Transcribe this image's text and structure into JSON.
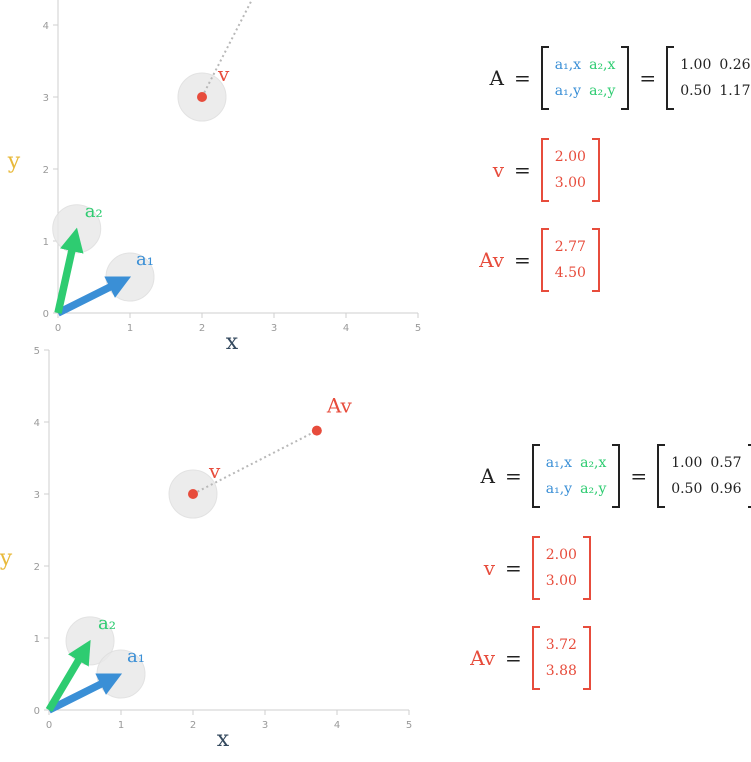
{
  "axis": {
    "xlabel": "x",
    "ylabel": "y",
    "ticks": [
      "0",
      "1",
      "2",
      "3",
      "4",
      "5"
    ],
    "xlim": [
      0,
      5
    ],
    "ylim": [
      0,
      5
    ]
  },
  "colors": {
    "a1": "#3a8fd6",
    "a2": "#2ecc71",
    "point": "#e74c3c",
    "ylabel": "#e8b93a",
    "xlabel": "#34495e"
  },
  "labels": {
    "a1": "a₁",
    "a2": "a₂",
    "v": "v",
    "Av": "Av",
    "A": "A",
    "eq": "="
  },
  "symbolic": {
    "a1x": "a₁,x",
    "a2x": "a₂,x",
    "a1y": "a₁,y",
    "a2y": "a₂,y"
  },
  "chart_data": [
    {
      "type": "scatter",
      "xlabel": "x",
      "ylabel": "y",
      "xlim": [
        0,
        5
      ],
      "ylim": [
        0,
        5
      ],
      "matrix": [
        [
          "1.00",
          "0.26"
        ],
        [
          "0.50",
          "1.17"
        ]
      ],
      "v": [
        "2.00",
        "3.00"
      ],
      "Av": [
        "2.77",
        "4.50"
      ],
      "a1": [
        1.0,
        0.5
      ],
      "a2": [
        0.26,
        1.17
      ],
      "v_point": [
        2.0,
        3.0
      ],
      "Av_point": [
        2.77,
        4.5
      ]
    },
    {
      "type": "scatter",
      "xlabel": "x",
      "ylabel": "y",
      "xlim": [
        0,
        5
      ],
      "ylim": [
        0,
        5
      ],
      "matrix": [
        [
          "1.00",
          "0.57"
        ],
        [
          "0.50",
          "0.96"
        ]
      ],
      "v": [
        "2.00",
        "3.00"
      ],
      "Av": [
        "3.72",
        "3.88"
      ],
      "a1": [
        1.0,
        0.5
      ],
      "a2": [
        0.57,
        0.96
      ],
      "v_point": [
        2.0,
        3.0
      ],
      "Av_point": [
        3.72,
        3.88
      ]
    }
  ]
}
